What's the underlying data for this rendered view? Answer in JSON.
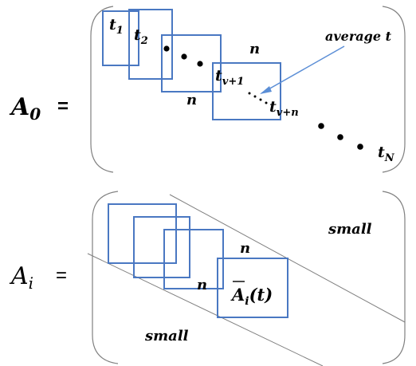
{
  "colors": {
    "box_stroke": "#4a78c2",
    "arrow_stroke": "#5b8ed6",
    "bracket_stroke": "#808080",
    "diagonal_line": "#7f7f7f",
    "text": "#000000"
  },
  "top_matrix": {
    "name_letter": "A",
    "name_subscript": "0",
    "equals": "=",
    "labels": {
      "t1": {
        "base": "t",
        "sub": "1"
      },
      "t2": {
        "base": "t",
        "sub": "2"
      },
      "tv1": {
        "base": "t",
        "sub": "v+1"
      },
      "tvn": {
        "base": "t",
        "sub": "v+n"
      },
      "tN": {
        "base": "t",
        "sub": "N"
      }
    },
    "window_size_top": "n",
    "window_size_side": "n",
    "annotation": "average t"
  },
  "bottom_matrix": {
    "name_letter": "A",
    "name_subscript": "i",
    "equals": "=",
    "region_upper": "small",
    "region_lower": "small",
    "window_size_top": "n",
    "window_size_side": "n",
    "average_block": {
      "letter": "A",
      "subscript": "i",
      "argument": "(t)"
    }
  }
}
